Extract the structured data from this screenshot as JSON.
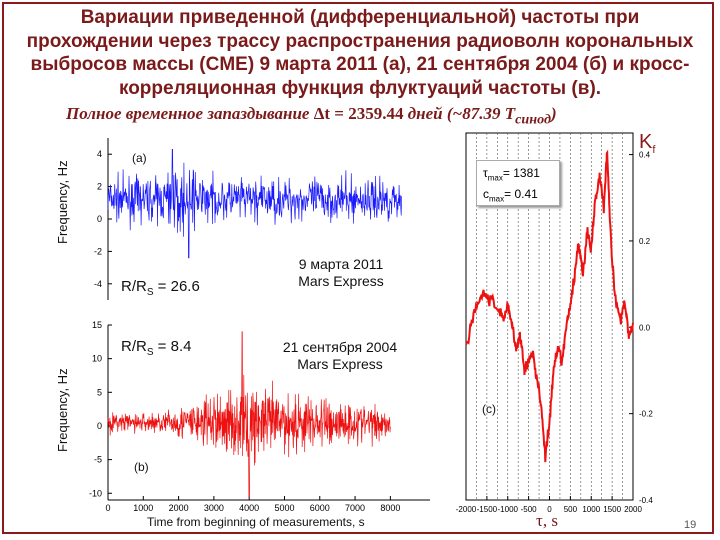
{
  "title": {
    "line1": "Вариации приведенной (дифференциальной) частоты при",
    "line2": "прохождении через трассу распространения радиоволн корональных",
    "line3": "выбросов массы (CME) 9 марта 2011 (а), 21 сентября 2004 (б) и кросс-",
    "line4": "корреляционная функция флуктуаций частоты (в)."
  },
  "subtitle": {
    "prefix": "Полное временное запаздывание  ",
    "value": "Δt = 2359.44",
    "suffix": " дней  (~87.39 Т",
    "sub": "синод",
    "close": ")"
  },
  "kf": {
    "main": "K",
    "sub": "f"
  },
  "slide_number": "19",
  "panel_a": {
    "tag": "(a)",
    "ylabel": "Frequency, Hz",
    "ratio": {
      "prefix": "R/R",
      "sub": "S",
      "suffix": " = 26.6"
    },
    "annotation": {
      "line1": "9 марта 2011",
      "line2": "Mars Express"
    },
    "color": "#1a1aff"
  },
  "panel_b": {
    "tag": "(b)",
    "ylabel": "Frequency, Hz",
    "xlabel": "Time from beginning of measurements, s",
    "ratio": {
      "prefix": "R/R",
      "sub": "S",
      "suffix": " = 8.4"
    },
    "annotation": {
      "line1": "21 сентября 2004",
      "line2": "Mars Express"
    },
    "color": "#ee1111"
  },
  "panel_c": {
    "tag": "(c)",
    "xlabel": "τ, s",
    "stats": {
      "tau_label": "τ",
      "tau_sub": "max",
      "tau_value": "= 1381",
      "c_label": "c",
      "c_sub": "max",
      "c_value": "= 0.41"
    },
    "color": "#ee1111"
  },
  "chart_data": [
    {
      "type": "line",
      "name": "panel_a",
      "ylim": [
        -5,
        5
      ],
      "xlim": [
        0,
        8500
      ],
      "yticks": [
        "4",
        "2",
        "0",
        "-2",
        "-4"
      ],
      "events": [
        {
          "x": 1750,
          "y": 4.3
        },
        {
          "x": 2200,
          "y": -2.4
        }
      ]
    },
    {
      "type": "line",
      "name": "panel_b",
      "xlim": [
        0,
        8500
      ],
      "ylim": [
        -11,
        15
      ],
      "xticks": [
        "0",
        "1000",
        "2000",
        "3000",
        "4000",
        "5000",
        "6000",
        "7000",
        "8000"
      ],
      "yticks": [
        "15",
        "10",
        "5",
        "0",
        "-5",
        "-10"
      ],
      "events": [
        {
          "x": 3800,
          "y": 14
        },
        {
          "x": 4000,
          "y": -10.5
        }
      ]
    },
    {
      "type": "line",
      "name": "panel_c",
      "xlim": [
        -2000,
        2000
      ],
      "ylim": [
        -0.4,
        0.45
      ],
      "xticks": [
        "-2000",
        "-1500",
        "-1000",
        "-500",
        "0",
        "500",
        "1000",
        "1500",
        "2000"
      ],
      "yticks": [
        "0.4",
        "0.2",
        "0.0",
        "-0.2",
        "-0.4"
      ],
      "x": [
        -2000,
        -1800,
        -1600,
        -1400,
        -1200,
        -1100,
        -1000,
        -900,
        -800,
        -700,
        -600,
        -500,
        -400,
        -300,
        -200,
        -100,
        0,
        100,
        200,
        300,
        400,
        500,
        600,
        700,
        800,
        900,
        1000,
        1100,
        1200,
        1300,
        1381,
        1450,
        1500,
        1600,
        1700,
        1800,
        1900,
        2000
      ],
      "y": [
        -0.05,
        0.04,
        0.08,
        0.06,
        0.04,
        0.02,
        0.05,
        0.01,
        -0.05,
        -0.02,
        -0.1,
        -0.08,
        -0.06,
        -0.12,
        -0.18,
        -0.3,
        -0.22,
        -0.1,
        -0.05,
        -0.08,
        0.0,
        0.05,
        0.12,
        0.2,
        0.12,
        0.22,
        0.18,
        0.3,
        0.35,
        0.28,
        0.41,
        0.25,
        0.15,
        0.05,
        0.02,
        0.06,
        -0.02,
        0.01
      ]
    }
  ]
}
